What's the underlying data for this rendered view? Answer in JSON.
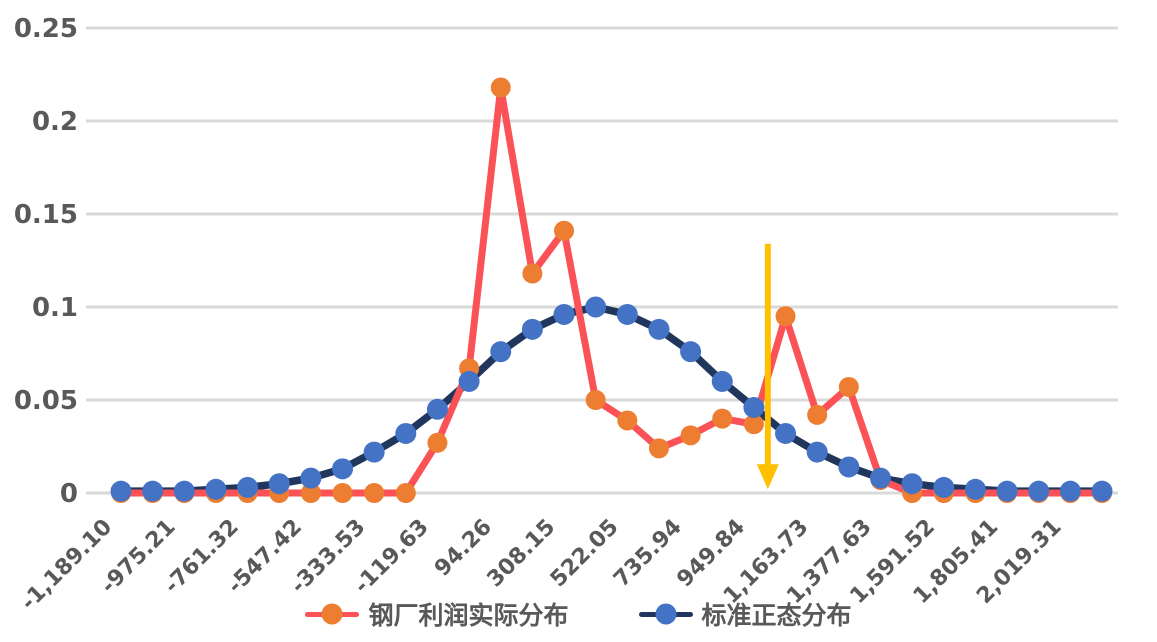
{
  "chart_data": {
    "type": "line",
    "title": "",
    "grid": "horizontal",
    "n_points": 32,
    "colors": {
      "grid": "#D9D9D9",
      "axis_text": "#595959",
      "actual_line": "#FA5257",
      "actual_marker": "#EC7D31",
      "normal_line": "#20365C",
      "normal_marker": "#4472C4",
      "arrow": "#FFC000"
    },
    "y_axis": {
      "range": [
        0,
        0.25
      ],
      "ticks": [
        0,
        0.05,
        0.1,
        0.15,
        0.2,
        0.25
      ],
      "tick_labels": [
        "0",
        "0.05",
        "0.1",
        "0.15",
        "0.2",
        "0.25"
      ]
    },
    "x_axis": {
      "label_every_n_points": 2,
      "rotation_deg": -45,
      "tick_labels": [
        "-1,189.10",
        "-975.21",
        "-761.32",
        "-547.42",
        "-333.53",
        "-119.63",
        "94.26",
        "308.15",
        "522.05",
        "735.94",
        "949.84",
        "1,163.73",
        "1,377.63",
        "1,591.52",
        "1,805.41",
        "2,019.31"
      ]
    },
    "x_values": [
      -1189.1,
      -1082.15,
      -975.21,
      -868.26,
      -761.32,
      -654.37,
      -547.42,
      -440.47,
      -333.53,
      -226.58,
      -119.63,
      -12.68,
      94.26,
      201.21,
      308.15,
      415.1,
      522.05,
      629.0,
      735.94,
      842.89,
      949.84,
      1056.78,
      1163.73,
      1270.68,
      1377.63,
      1484.57,
      1591.52,
      1698.47,
      1805.41,
      1912.36,
      2019.31,
      2126.26
    ],
    "series": [
      {
        "name": "钢厂利润实际分布",
        "line_color": "#FA5257",
        "marker_color": "#EC7D31",
        "values": [
          0,
          0,
          0,
          0,
          0,
          0,
          0,
          0,
          0,
          0,
          0.027,
          0.067,
          0.218,
          0.118,
          0.141,
          0.05,
          0.039,
          0.024,
          0.031,
          0.04,
          0.037,
          0.095,
          0.042,
          0.057,
          0.007,
          0,
          0,
          0,
          0,
          0,
          0,
          0
        ]
      },
      {
        "name": "标准正态分布",
        "line_color": "#20365C",
        "marker_color": "#4472C4",
        "values": [
          0.001,
          0.001,
          0.001,
          0.002,
          0.003,
          0.005,
          0.008,
          0.013,
          0.022,
          0.032,
          0.045,
          0.06,
          0.076,
          0.088,
          0.096,
          0.1,
          0.096,
          0.088,
          0.076,
          0.06,
          0.046,
          0.032,
          0.022,
          0.014,
          0.008,
          0.005,
          0.003,
          0.002,
          0.001,
          0.001,
          0.001,
          0.001
        ]
      }
    ],
    "annotation_arrow": {
      "x": 997,
      "y_from": 0.134,
      "y_to": 0.002,
      "color": "#FFC000",
      "direction": "down"
    },
    "legend": {
      "position": "bottom",
      "entries": [
        "钢厂利润实际分布",
        "标准正态分布"
      ]
    }
  }
}
